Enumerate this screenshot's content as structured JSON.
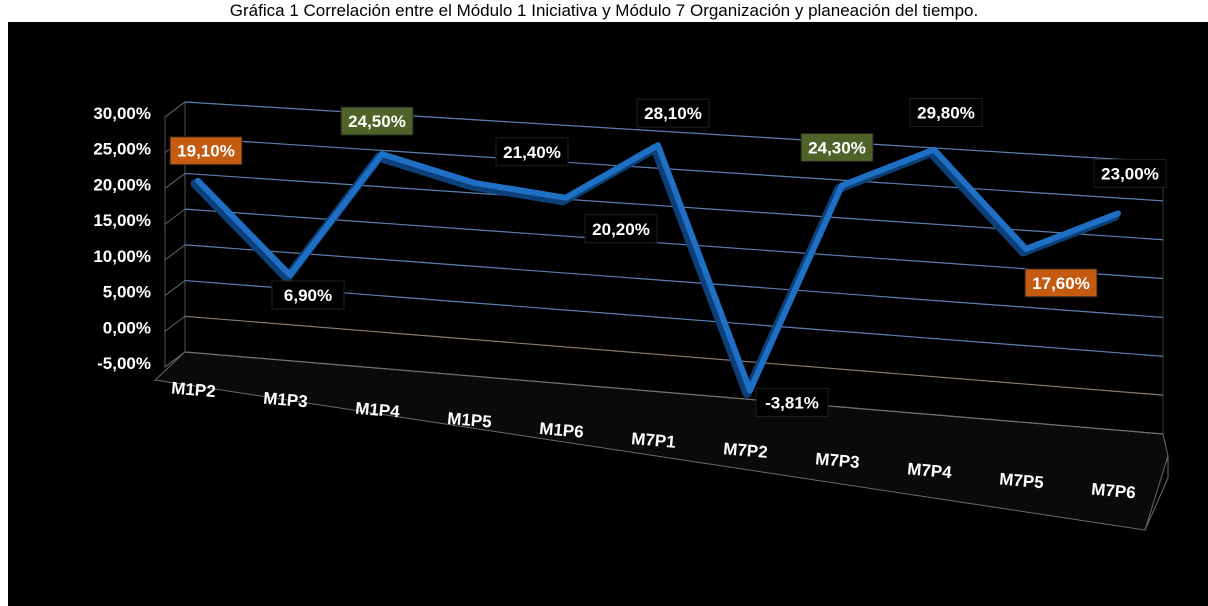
{
  "caption": "Gráfica 1 Correlación entre el Módulo 1 Iniciativa y Módulo 7 Organización y planeación del tiempo.",
  "chart_data": {
    "type": "line",
    "title": "",
    "xlabel": "",
    "ylabel": "",
    "ylim": [
      -5,
      30
    ],
    "y_ticks": [
      "30,00%",
      "25,00%",
      "20,00%",
      "15,00%",
      "10,00%",
      "5,00%",
      "0,00%",
      "-5,00%"
    ],
    "y_tick_values": [
      30,
      25,
      20,
      15,
      10,
      5,
      0,
      -5
    ],
    "grid": true,
    "view": "3d",
    "categories": [
      "M1P2",
      "M1P3",
      "M1P4",
      "M1P5",
      "M1P6",
      "M7P1",
      "M7P2",
      "M7P3",
      "M7P4",
      "M7P5",
      "M7P6"
    ],
    "values": [
      19.1,
      6.9,
      24.5,
      21.4,
      20.2,
      28.1,
      -3.81,
      24.3,
      29.8,
      17.6,
      23.0
    ],
    "data_labels": [
      "19,10%",
      "6,90%",
      "24,50%",
      "21,40%",
      "20,20%",
      "28,10%",
      "-3,81%",
      "24,30%",
      "29,80%",
      "17,60%",
      "23,00%"
    ],
    "label_colors": [
      "#c55a11",
      "#000000",
      "#4f6228",
      "#000000",
      "#000000",
      "#000000",
      "#000000",
      "#4f6228",
      "#000000",
      "#c55a11",
      "#000000"
    ],
    "colors": {
      "line": "#1f6fc5",
      "grid": "#5b7fb4",
      "background": "#000000",
      "text": "#ffffff"
    }
  }
}
